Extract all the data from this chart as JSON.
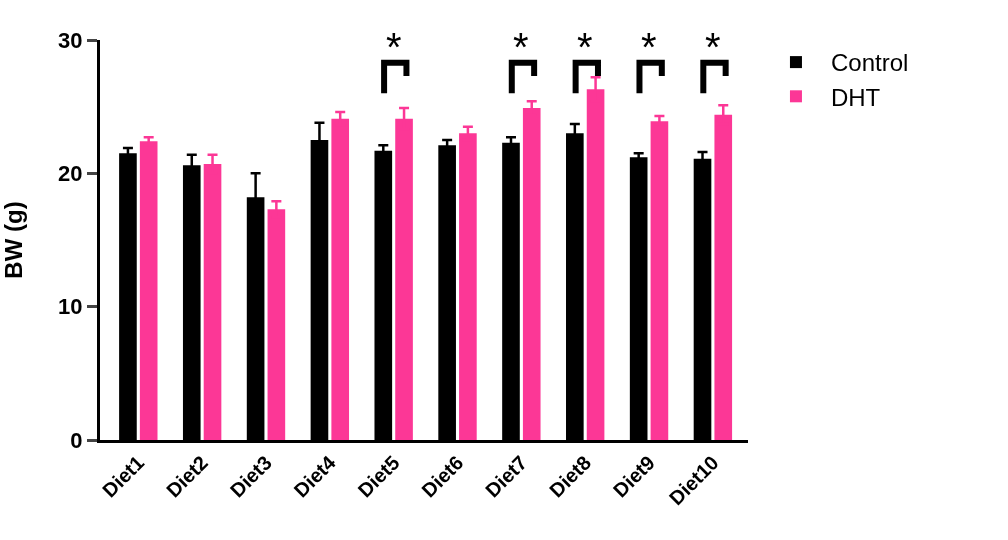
{
  "chart_data": {
    "type": "bar",
    "ylabel": "BW (g)",
    "categories": [
      "Diet1",
      "Diet2",
      "Diet3",
      "Diet4",
      "Diet5",
      "Diet6",
      "Diet7",
      "Diet8",
      "Diet9",
      "Diet10"
    ],
    "series": [
      {
        "name": "Control",
        "color": "#000000",
        "values": [
          21.5,
          20.6,
          18.2,
          22.5,
          21.7,
          22.1,
          22.3,
          23.0,
          21.2,
          21.1
        ],
        "errors": [
          0.4,
          0.8,
          1.8,
          1.3,
          0.4,
          0.4,
          0.4,
          0.7,
          0.3,
          0.5
        ]
      },
      {
        "name": "DHT",
        "color": "#fc3796",
        "values": [
          22.4,
          20.7,
          17.3,
          24.1,
          24.1,
          23.0,
          24.9,
          26.3,
          23.9,
          24.4
        ],
        "errors": [
          0.3,
          0.7,
          0.6,
          0.5,
          0.8,
          0.5,
          0.5,
          0.9,
          0.4,
          0.7
        ]
      }
    ],
    "ylim": [
      0,
      30
    ],
    "yticks": [
      0,
      10,
      20,
      30
    ],
    "grid": false,
    "legend": "top right",
    "annotations": [
      "*",
      "*",
      "*",
      "*",
      "*"
    ]
  }
}
